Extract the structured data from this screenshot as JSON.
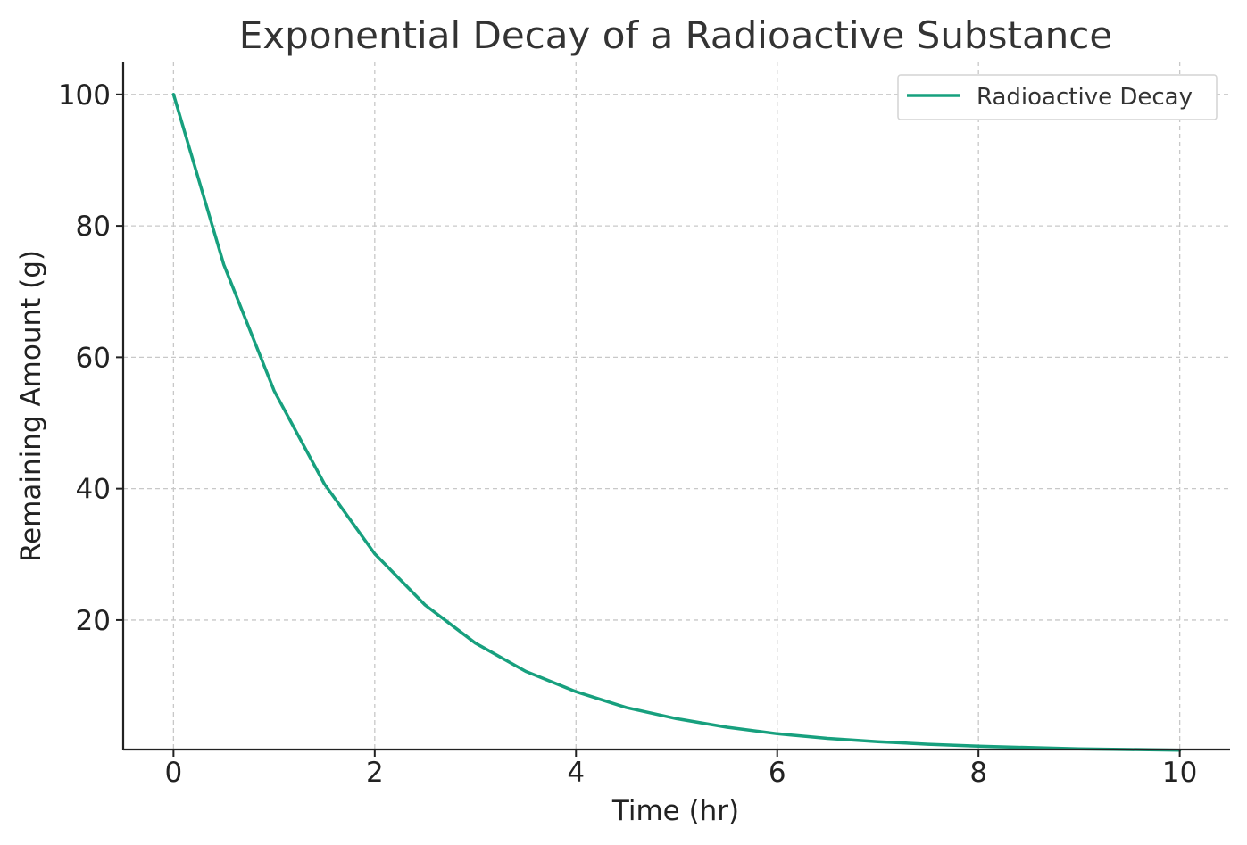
{
  "chart_data": {
    "type": "line",
    "title": "Exponential Decay of a Radioactive Substance",
    "xlabel": "Time (hr)",
    "ylabel": "Remaining Amount (g)",
    "xlim": [
      -0.5,
      10.5
    ],
    "ylim": [
      0.3,
      105
    ],
    "xticks": [
      0,
      2,
      4,
      6,
      8,
      10
    ],
    "yticks": [
      20,
      40,
      60,
      80,
      100
    ],
    "grid": true,
    "legend_position": "top-right",
    "series": [
      {
        "name": "Radioactive Decay",
        "color": "#17a07e",
        "x": [
          0,
          0.5,
          1,
          1.5,
          2,
          2.5,
          3,
          3.5,
          4,
          4.5,
          5,
          5.5,
          6,
          6.5,
          7,
          7.5,
          8,
          8.5,
          9,
          9.5,
          10
        ],
        "y": [
          100,
          74.1,
          54.9,
          40.7,
          30.1,
          22.3,
          16.5,
          12.2,
          9.1,
          6.7,
          5.0,
          3.7,
          2.7,
          2.0,
          1.5,
          1.1,
          0.8,
          0.6,
          0.4,
          0.3,
          0.2
        ]
      }
    ]
  }
}
